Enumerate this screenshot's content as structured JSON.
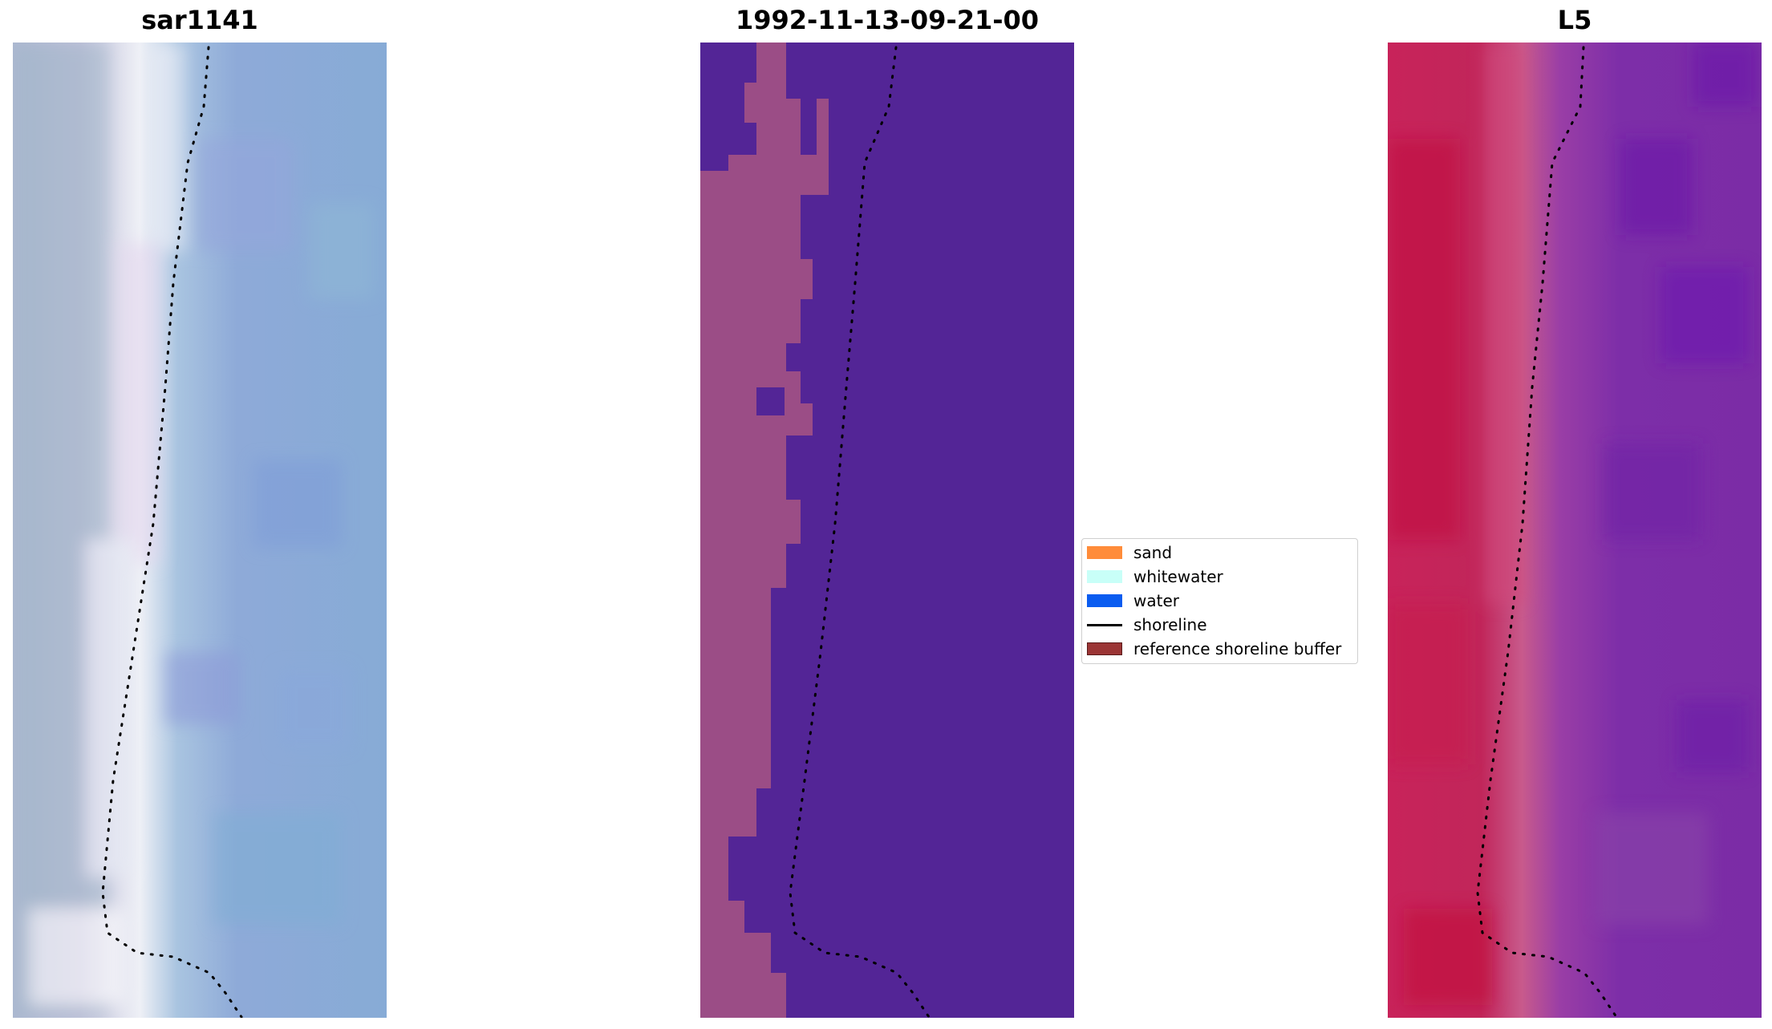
{
  "titles": {
    "left": "sar1141",
    "middle": "1992-11-13-09-21-00",
    "right": "L5"
  },
  "legend": {
    "items": [
      {
        "label": "sand",
        "color": "#ff8c3a",
        "kind": "patch"
      },
      {
        "label": "whitewater",
        "color": "#c8fff8",
        "kind": "patch"
      },
      {
        "label": "water",
        "color": "#0a5cf0",
        "kind": "patch"
      },
      {
        "label": "shoreline",
        "color": "#000000",
        "kind": "line"
      },
      {
        "label": "reference shoreline buffer",
        "color": "#9b3535",
        "kind": "patch"
      }
    ]
  },
  "colors": {
    "rgb_water": "#8aa8d6",
    "rgb_beach": "#e8eaf2",
    "class_sea": "#532596",
    "class_land": "#9b4d86",
    "false_color_land": "#c21e4f",
    "false_color_sea": "#7a2aa4",
    "shoreline_dots": "#000000"
  }
}
